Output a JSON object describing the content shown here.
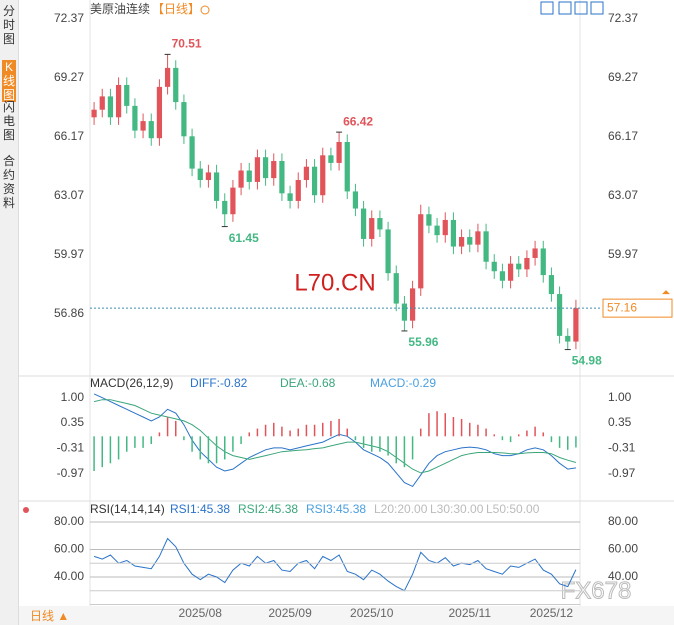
{
  "sidebar": {
    "tabs": [
      "分时图",
      "K线图",
      "闪电图",
      "合约资料"
    ]
  },
  "period": "【日线】",
  "bottom_label": "日线 ▲",
  "watermarks": [
    "L70.CN",
    "FX678"
  ],
  "chart_data": [
    {
      "type": "candlestick",
      "title": "美原油连续",
      "up_color": "#e0545a",
      "down_color": "#43b883",
      "ylim": [
        53.8,
        72.95
      ],
      "yticks": [
        {
          "value": 72.37,
          "label": "72.37"
        },
        {
          "value": 69.27,
          "label": "69.27"
        },
        {
          "value": 66.17,
          "label": "66.17"
        },
        {
          "value": 63.07,
          "label": "63.07"
        },
        {
          "value": 59.97,
          "label": "59.97"
        },
        {
          "value": 56.86,
          "label": "56.86"
        }
      ],
      "grid": false,
      "categories": [
        null,
        null,
        null,
        null,
        null,
        null,
        null,
        null,
        null,
        null,
        null,
        null,
        null,
        "2025/08",
        null,
        null,
        null,
        null,
        null,
        null,
        null,
        null,
        null,
        null,
        "2025/09",
        null,
        null,
        null,
        null,
        null,
        null,
        null,
        null,
        null,
        "2025/10",
        null,
        null,
        null,
        null,
        null,
        null,
        null,
        null,
        null,
        null,
        null,
        "2025/11",
        null,
        null,
        null,
        null,
        null,
        null,
        null,
        null,
        null,
        "2025/12",
        null,
        null,
        null
      ],
      "open": [
        67.2,
        67.6,
        68.3,
        67.2,
        68.9,
        67.8,
        66.5,
        67.0,
        66.1,
        68.8,
        69.8,
        68.0,
        66.2,
        64.5,
        63.9,
        64.3,
        62.8,
        62.1,
        63.5,
        64.4,
        63.8,
        65.1,
        64.0,
        64.9,
        63.2,
        62.8,
        63.9,
        64.6,
        63.1,
        65.2,
        64.8,
        65.9,
        63.3,
        62.4,
        60.8,
        61.9,
        61.3,
        59.0,
        57.4,
        56.5,
        58.2,
        62.1,
        61.5,
        61.0,
        61.8,
        60.4,
        60.9,
        60.5,
        61.2,
        59.6,
        59.1,
        58.6,
        59.5,
        59.2,
        59.8,
        60.3,
        58.9,
        57.9,
        55.7,
        55.4
      ],
      "high": [
        68.0,
        68.7,
        68.7,
        69.3,
        69.3,
        68.2,
        67.4,
        67.4,
        69.2,
        70.51,
        70.2,
        68.4,
        66.6,
        64.9,
        64.7,
        64.7,
        63.2,
        63.9,
        64.8,
        64.8,
        65.5,
        65.5,
        65.3,
        65.3,
        63.6,
        64.3,
        65.0,
        65.0,
        65.6,
        65.6,
        66.42,
        66.3,
        63.7,
        62.8,
        62.3,
        62.3,
        61.7,
        59.4,
        57.8,
        58.6,
        62.6,
        62.5,
        61.9,
        62.2,
        62.2,
        61.3,
        61.3,
        61.6,
        61.6,
        60.0,
        59.5,
        59.9,
        59.9,
        60.2,
        60.7,
        60.7,
        59.3,
        58.3,
        56.1,
        57.6
      ],
      "low": [
        66.8,
        67.2,
        66.8,
        66.8,
        67.4,
        66.1,
        66.1,
        65.7,
        65.7,
        68.4,
        67.6,
        65.8,
        64.1,
        63.5,
        63.5,
        62.4,
        61.45,
        61.7,
        63.1,
        63.4,
        63.4,
        63.6,
        63.6,
        62.8,
        62.4,
        62.4,
        63.5,
        62.7,
        62.7,
        64.4,
        64.4,
        62.9,
        62.0,
        60.4,
        60.4,
        60.9,
        58.6,
        57.0,
        55.96,
        56.1,
        57.8,
        61.1,
        60.6,
        60.6,
        60.0,
        60.0,
        60.1,
        60.1,
        59.2,
        58.7,
        58.2,
        58.2,
        58.8,
        58.8,
        59.4,
        58.5,
        57.5,
        55.3,
        54.98,
        55.0
      ],
      "close": [
        67.6,
        68.3,
        67.2,
        68.9,
        67.8,
        66.5,
        67.0,
        66.1,
        68.8,
        69.8,
        68.0,
        66.2,
        64.5,
        63.9,
        64.3,
        62.8,
        62.1,
        63.5,
        64.4,
        63.8,
        65.1,
        64.0,
        64.9,
        63.2,
        62.8,
        63.9,
        64.6,
        63.1,
        65.2,
        64.8,
        65.9,
        63.3,
        62.4,
        60.8,
        61.9,
        61.3,
        59.0,
        57.4,
        56.5,
        58.2,
        62.1,
        61.5,
        61.0,
        61.8,
        60.4,
        60.9,
        60.5,
        61.2,
        59.6,
        59.1,
        58.6,
        59.5,
        59.2,
        59.8,
        60.3,
        58.9,
        57.9,
        55.7,
        55.4,
        57.16
      ]
    },
    {
      "type": "macd",
      "title": "MACD(26,12,9)",
      "ylim": [
        -1.6,
        1.46
      ],
      "yticks": [
        {
          "value": 1,
          "label": "1.00"
        },
        0.35,
        -0.31,
        -0.97
      ],
      "up_color": "#e0545a",
      "down_color": "#43b883",
      "series": [
        {
          "name": "DIFF:-0.82",
          "color": "#2a73c9",
          "values": [
            1.1,
            1.0,
            0.9,
            0.8,
            0.7,
            0.6,
            0.5,
            0.4,
            0.5,
            0.7,
            0.6,
            0.3,
            -0.1,
            -0.4,
            -0.6,
            -0.8,
            -0.9,
            -0.85,
            -0.7,
            -0.55,
            -0.45,
            -0.35,
            -0.3,
            -0.3,
            -0.35,
            -0.3,
            -0.25,
            -0.2,
            -0.15,
            -0.05,
            0.05,
            0,
            -0.15,
            -0.35,
            -0.45,
            -0.55,
            -0.7,
            -0.95,
            -1.2,
            -1.3,
            -1.0,
            -0.7,
            -0.5,
            -0.4,
            -0.35,
            -0.3,
            -0.28,
            -0.3,
            -0.35,
            -0.45,
            -0.5,
            -0.5,
            -0.45,
            -0.35,
            -0.3,
            -0.35,
            -0.5,
            -0.7,
            -0.85,
            -0.82
          ]
        },
        {
          "name": "DEA:-0.68",
          "color": "#3aa67a",
          "values": [
            0.9,
            0.95,
            0.95,
            0.9,
            0.85,
            0.8,
            0.7,
            0.6,
            0.55,
            0.5,
            0.45,
            0.4,
            0.3,
            0.15,
            -0.05,
            -0.25,
            -0.4,
            -0.5,
            -0.55,
            -0.6,
            -0.55,
            -0.5,
            -0.45,
            -0.4,
            -0.38,
            -0.36,
            -0.35,
            -0.32,
            -0.3,
            -0.25,
            -0.2,
            -0.15,
            -0.15,
            -0.2,
            -0.25,
            -0.3,
            -0.4,
            -0.55,
            -0.7,
            -0.85,
            -0.95,
            -0.9,
            -0.8,
            -0.7,
            -0.6,
            -0.5,
            -0.45,
            -0.42,
            -0.42,
            -0.42,
            -0.43,
            -0.45,
            -0.45,
            -0.43,
            -0.42,
            -0.42,
            -0.45,
            -0.55,
            -0.62,
            -0.68
          ]
        },
        {
          "name": "MACD:-0.29",
          "color": "#4a9fe0",
          "kind": "histogram",
          "values": [
            -0.9,
            -0.8,
            -0.7,
            -0.6,
            -0.4,
            -0.3,
            -0.3,
            -0.2,
            0.1,
            0.5,
            0.4,
            -0.1,
            -0.4,
            -0.6,
            -0.7,
            -0.7,
            -0.6,
            -0.4,
            -0.2,
            0.1,
            0.2,
            0.3,
            0.35,
            0.25,
            0.15,
            0.2,
            0.3,
            0.3,
            0.35,
            0.4,
            0.45,
            0.2,
            -0.1,
            -0.3,
            -0.4,
            -0.4,
            -0.5,
            -0.7,
            -0.8,
            -0.6,
            0.2,
            0.6,
            0.65,
            0.6,
            0.5,
            0.45,
            0.35,
            0.3,
            0.2,
            0.05,
            -0.1,
            -0.15,
            0.05,
            0.15,
            0.25,
            0.1,
            -0.15,
            -0.3,
            -0.35,
            -0.29
          ]
        }
      ]
    },
    {
      "type": "line",
      "title": "RSI(14,14,14)",
      "ylim": [
        19.6,
        92.4
      ],
      "yticks": [
        {
          "value": 80,
          "label": "80.00"
        },
        {
          "value": 60,
          "label": "60.00"
        },
        {
          "value": 40,
          "label": "40.00"
        }
      ],
      "grid": true,
      "series": [
        {
          "name": "RSI1:45.38",
          "color": "#2a73c9",
          "values": [
            55,
            53,
            56,
            50,
            52,
            48,
            47,
            46,
            55,
            68,
            62,
            50,
            42,
            38,
            42,
            40,
            36,
            45,
            50,
            48,
            55,
            50,
            52,
            45,
            44,
            50,
            52,
            46,
            55,
            52,
            56,
            44,
            42,
            38,
            45,
            42,
            37,
            33,
            30,
            42,
            58,
            52,
            50,
            54,
            48,
            50,
            49,
            52,
            46,
            44,
            42,
            48,
            47,
            50,
            53,
            45,
            42,
            35,
            33,
            45.38
          ]
        },
        {
          "name": "RSI2:45.38",
          "color": "#3aa67a"
        },
        {
          "name": "RSI3:45.38",
          "color": "#4a9fe0"
        }
      ],
      "levels": [
        {
          "name": "L20:20.00",
          "value": 20
        },
        {
          "name": "L30:30.00",
          "value": 30
        },
        {
          "name": "L50:50.00",
          "value": 50
        }
      ]
    }
  ]
}
